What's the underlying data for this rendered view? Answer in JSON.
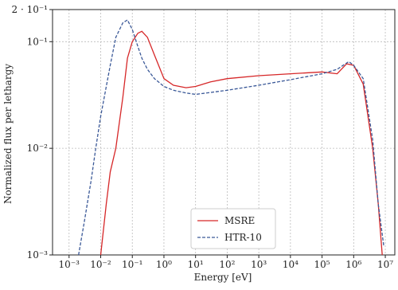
{
  "chart_data": {
    "type": "line",
    "x_label": "Energy [eV]",
    "y_label": "Normalized flux per lethargy",
    "log_x": true,
    "log_y": true,
    "grid": true,
    "legend": "lower center",
    "xlim": [
      0.0003,
      20000000
    ],
    "ylim": [
      0.001,
      0.2
    ],
    "xticks": [
      {
        "value": 0.001,
        "label": "10⁻³"
      },
      {
        "value": 0.01,
        "label": "10⁻²"
      },
      {
        "value": 0.1,
        "label": "10⁻¹"
      },
      {
        "value": 1,
        "label": "10⁰"
      },
      {
        "value": 10,
        "label": "10¹"
      },
      {
        "value": 100,
        "label": "10²"
      },
      {
        "value": 1000,
        "label": "10³"
      },
      {
        "value": 10000,
        "label": "10⁴"
      },
      {
        "value": 100000,
        "label": "10⁵"
      },
      {
        "value": 1000000,
        "label": "10⁶"
      },
      {
        "value": 10000000,
        "label": "10⁷"
      }
    ],
    "yticks": [
      {
        "value": 0.001,
        "label": "10⁻³"
      },
      {
        "value": 0.01,
        "label": "10⁻²"
      },
      {
        "value": 0.1,
        "label": "10⁻¹"
      },
      {
        "value": 0.2,
        "label": "2 · 10⁻¹"
      }
    ],
    "series": [
      {
        "name": "MSRE",
        "color": "#d62728",
        "dash": false,
        "x": [
          0.01,
          0.015,
          0.02,
          0.03,
          0.05,
          0.07,
          0.1,
          0.15,
          0.2,
          0.3,
          0.5,
          1,
          2,
          5,
          10,
          30,
          100,
          1000,
          10000,
          100000,
          300000,
          600000,
          1000000,
          2000000,
          4000000,
          6000000,
          8000000
        ],
        "values": [
          0.001,
          0.003,
          0.006,
          0.01,
          0.03,
          0.07,
          0.1,
          0.12,
          0.125,
          0.11,
          0.075,
          0.045,
          0.039,
          0.037,
          0.038,
          0.042,
          0.045,
          0.048,
          0.05,
          0.052,
          0.05,
          0.062,
          0.06,
          0.04,
          0.01,
          0.003,
          0.001
        ]
      },
      {
        "name": "HTR-10",
        "color": "#3b5998",
        "dash": true,
        "x": [
          0.002,
          0.003,
          0.005,
          0.007,
          0.01,
          0.02,
          0.03,
          0.05,
          0.07,
          0.1,
          0.15,
          0.2,
          0.3,
          0.5,
          1,
          2,
          5,
          10,
          100,
          1000,
          10000,
          100000,
          300000,
          700000,
          1000000,
          2000000,
          4000000,
          6000000,
          9000000
        ],
        "values": [
          0.001,
          0.002,
          0.005,
          0.01,
          0.02,
          0.06,
          0.11,
          0.15,
          0.16,
          0.13,
          0.09,
          0.07,
          0.055,
          0.045,
          0.038,
          0.035,
          0.033,
          0.032,
          0.035,
          0.039,
          0.044,
          0.05,
          0.055,
          0.065,
          0.06,
          0.045,
          0.012,
          0.003,
          0.0012
        ]
      }
    ]
  }
}
